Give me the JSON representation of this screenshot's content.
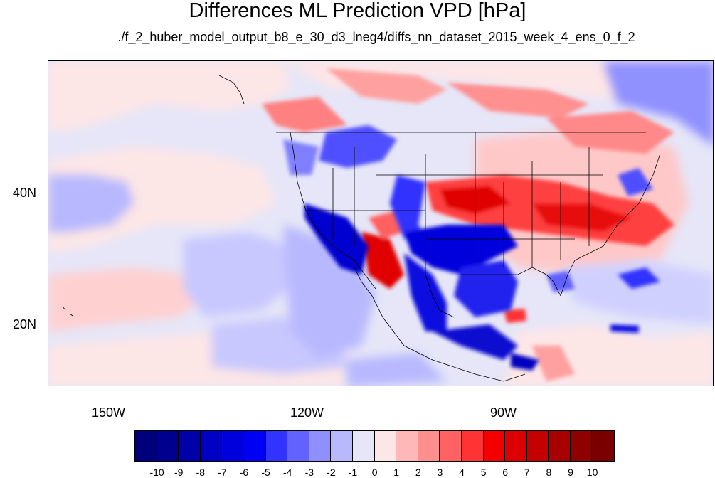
{
  "title": "Differences ML Prediction VPD [hPa]",
  "subtitle": "./f_2_huber_model_output_b8_e_30_d3_lneg4/diffs_nn_dataset_2015_week_4_ens_0_f_2",
  "axes": {
    "lat_labels": [
      "40N",
      "20N"
    ],
    "lon_labels": [
      "150W",
      "120W",
      "90W"
    ]
  },
  "colorbar": {
    "labels": [
      "-10",
      "-9",
      "-8",
      "-7",
      "-6",
      "-5",
      "-4",
      "-3",
      "-2",
      "-1",
      "0",
      "1",
      "2",
      "3",
      "4",
      "5",
      "6",
      "7",
      "8",
      "9",
      "10"
    ],
    "colors": [
      "#00007a",
      "#00008f",
      "#0000a8",
      "#0000c4",
      "#0000dd",
      "#0000f5",
      "#3333ff",
      "#6262ff",
      "#8f8fff",
      "#b8b8ff",
      "#e6e6f8",
      "#fde6e6",
      "#ffb8b8",
      "#ff8f8f",
      "#ff6262",
      "#ff3333",
      "#f50000",
      "#dd0000",
      "#c40000",
      "#a80000",
      "#8f0000",
      "#7a0000"
    ]
  }
}
